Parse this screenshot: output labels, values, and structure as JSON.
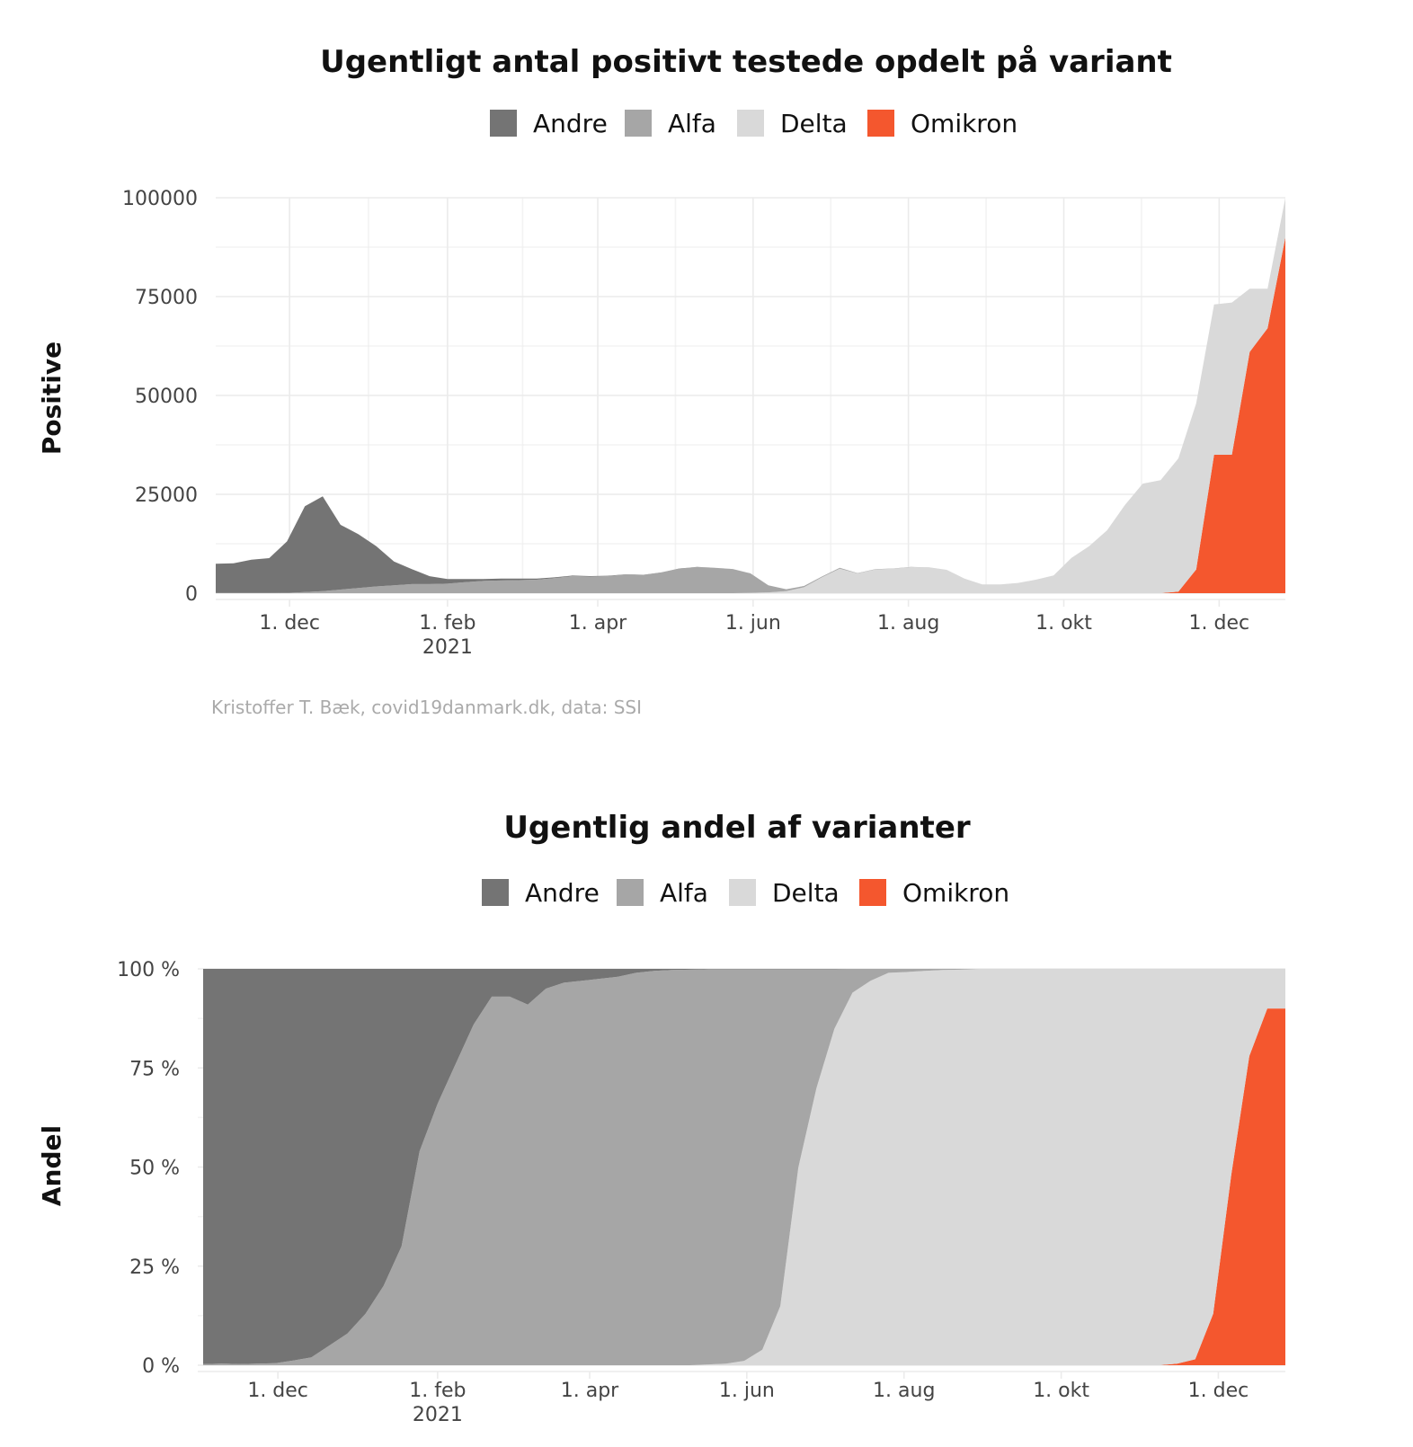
{
  "chart_data": [
    {
      "type": "area",
      "stacked": true,
      "title": "Ugentligt antal positivt testede opdelt på variant",
      "ylabel": "Positive",
      "caption": "Kristoffer T. Bæk, covid19danmark.dk, data: SSI",
      "ylim": [
        0,
        100000
      ],
      "yticks": [
        0,
        25000,
        50000,
        75000,
        100000
      ],
      "ytick_labels": [
        "0",
        "25000",
        "50000",
        "75000",
        "100000"
      ],
      "xticks": [
        {
          "date": "2020-12-01",
          "label": "1. dec",
          "label2": ""
        },
        {
          "date": "2021-02-01",
          "label": "1. feb",
          "label2": "2021"
        },
        {
          "date": "2021-04-01",
          "label": "1. apr",
          "label2": ""
        },
        {
          "date": "2021-06-01",
          "label": "1. jun",
          "label2": ""
        },
        {
          "date": "2021-08-01",
          "label": "1. aug",
          "label2": ""
        },
        {
          "date": "2021-10-01",
          "label": "1. okt",
          "label2": ""
        },
        {
          "date": "2021-12-01",
          "label": "1. dec",
          "label2": ""
        }
      ],
      "x": [
        "2020-11-02",
        "2020-11-09",
        "2020-11-16",
        "2020-11-23",
        "2020-11-30",
        "2020-12-07",
        "2020-12-14",
        "2020-12-21",
        "2020-12-28",
        "2021-01-04",
        "2021-01-11",
        "2021-01-18",
        "2021-01-25",
        "2021-02-01",
        "2021-02-08",
        "2021-02-15",
        "2021-02-22",
        "2021-03-01",
        "2021-03-08",
        "2021-03-15",
        "2021-03-22",
        "2021-03-29",
        "2021-04-05",
        "2021-04-12",
        "2021-04-19",
        "2021-04-26",
        "2021-05-03",
        "2021-05-10",
        "2021-05-17",
        "2021-05-24",
        "2021-05-31",
        "2021-06-07",
        "2021-06-14",
        "2021-06-21",
        "2021-06-28",
        "2021-07-05",
        "2021-07-12",
        "2021-07-19",
        "2021-07-26",
        "2021-08-02",
        "2021-08-09",
        "2021-08-16",
        "2021-08-23",
        "2021-08-30",
        "2021-09-06",
        "2021-09-13",
        "2021-09-20",
        "2021-09-27",
        "2021-10-04",
        "2021-10-11",
        "2021-10-18",
        "2021-10-25",
        "2021-11-01",
        "2021-11-08",
        "2021-11-15",
        "2021-11-22",
        "2021-11-29",
        "2021-12-06",
        "2021-12-13",
        "2021-12-20",
        "2021-12-27"
      ],
      "series": [
        {
          "name": "Andre",
          "color": "#747474",
          "values": [
            7400,
            7500,
            8400,
            8800,
            13000,
            21700,
            24000,
            16400,
            13600,
            10200,
            6000,
            3800,
            2000,
            1200,
            800,
            500,
            500,
            400,
            300,
            200,
            150,
            120,
            100,
            80,
            70,
            60,
            50,
            40,
            30,
            20,
            10,
            10,
            10,
            10,
            10,
            10,
            0,
            0,
            0,
            0,
            0,
            0,
            0,
            0,
            0,
            0,
            0,
            0,
            0,
            0,
            0,
            0,
            0,
            0,
            0,
            0,
            0,
            0,
            0,
            0,
            0
          ]
        },
        {
          "name": "Alfa",
          "color": "#a6a6a6",
          "values": [
            50,
            50,
            60,
            60,
            80,
            300,
            500,
            900,
            1300,
            1700,
            2000,
            2300,
            2300,
            2400,
            2800,
            3100,
            3200,
            3300,
            3400,
            3800,
            4300,
            4200,
            4300,
            4700,
            4600,
            5200,
            6200,
            6600,
            6400,
            6100,
            4900,
            1800,
            500,
            300,
            200,
            200,
            100,
            60,
            40,
            30,
            20,
            10,
            10,
            0,
            0,
            0,
            0,
            0,
            0,
            0,
            0,
            0,
            0,
            0,
            0,
            0,
            0,
            0,
            0,
            0,
            0
          ]
        },
        {
          "name": "Delta",
          "color": "#d9d9d9",
          "values": [
            0,
            0,
            0,
            0,
            0,
            0,
            0,
            0,
            0,
            0,
            0,
            0,
            0,
            0,
            0,
            0,
            0,
            0,
            0,
            0,
            0,
            0,
            0,
            0,
            0,
            0,
            0,
            0,
            0,
            0,
            100,
            200,
            500,
            1500,
            4000,
            6200,
            5000,
            6000,
            6200,
            6600,
            6500,
            5900,
            3700,
            2200,
            2200,
            2600,
            3400,
            4500,
            8900,
            11900,
            15900,
            22300,
            27700,
            28600,
            33700,
            42000,
            38000,
            38500,
            16000,
            10000,
            10000
          ]
        },
        {
          "name": "Omikron",
          "color": "#f4572e",
          "values": [
            0,
            0,
            0,
            0,
            0,
            0,
            0,
            0,
            0,
            0,
            0,
            0,
            0,
            0,
            0,
            0,
            0,
            0,
            0,
            0,
            0,
            0,
            0,
            0,
            0,
            0,
            0,
            0,
            0,
            0,
            0,
            0,
            0,
            0,
            0,
            0,
            0,
            0,
            0,
            0,
            0,
            0,
            0,
            0,
            0,
            0,
            0,
            0,
            0,
            0,
            0,
            0,
            0,
            0,
            400,
            6000,
            35000,
            35000,
            61000,
            67000,
            90000
          ]
        }
      ]
    },
    {
      "type": "area",
      "stacked": true,
      "percent": true,
      "title": "Ugentlig andel af varianter",
      "ylabel": "Andel",
      "ylim": [
        0,
        100
      ],
      "yticks": [
        0,
        25,
        50,
        75,
        100
      ],
      "ytick_labels": [
        "0 %",
        "25 %",
        "50 %",
        "75 %",
        "100 %"
      ],
      "xticks": [
        {
          "date": "2020-12-01",
          "label": "1. dec",
          "label2": ""
        },
        {
          "date": "2021-02-01",
          "label": "1. feb",
          "label2": "2021"
        },
        {
          "date": "2021-04-01",
          "label": "1. apr",
          "label2": ""
        },
        {
          "date": "2021-06-01",
          "label": "1. jun",
          "label2": ""
        },
        {
          "date": "2021-08-01",
          "label": "1. aug",
          "label2": ""
        },
        {
          "date": "2021-10-01",
          "label": "1. okt",
          "label2": ""
        },
        {
          "date": "2021-12-01",
          "label": "1. dec",
          "label2": ""
        }
      ],
      "x": [
        "2020-11-02",
        "2020-11-09",
        "2020-11-16",
        "2020-11-23",
        "2020-11-30",
        "2020-12-07",
        "2020-12-14",
        "2020-12-21",
        "2020-12-28",
        "2021-01-04",
        "2021-01-11",
        "2021-01-18",
        "2021-01-25",
        "2021-02-01",
        "2021-02-08",
        "2021-02-15",
        "2021-02-22",
        "2021-03-01",
        "2021-03-08",
        "2021-03-15",
        "2021-03-22",
        "2021-03-29",
        "2021-04-05",
        "2021-04-12",
        "2021-04-19",
        "2021-04-26",
        "2021-05-03",
        "2021-05-10",
        "2021-05-17",
        "2021-05-24",
        "2021-05-31",
        "2021-06-07",
        "2021-06-14",
        "2021-06-21",
        "2021-06-28",
        "2021-07-05",
        "2021-07-12",
        "2021-07-19",
        "2021-07-26",
        "2021-08-02",
        "2021-08-09",
        "2021-08-16",
        "2021-08-23",
        "2021-08-30",
        "2021-09-06",
        "2021-09-13",
        "2021-09-20",
        "2021-09-27",
        "2021-10-04",
        "2021-10-11",
        "2021-10-18",
        "2021-10-25",
        "2021-11-01",
        "2021-11-08",
        "2021-11-15",
        "2021-11-22",
        "2021-11-29",
        "2021-12-06",
        "2021-12-13",
        "2021-12-20",
        "2021-12-27"
      ],
      "series": [
        {
          "name": "Andre",
          "color": "#747474",
          "values": [
            99.7,
            99.6,
            99.7,
            99.6,
            99.5,
            98.8,
            98.0,
            95.0,
            92.0,
            87.0,
            80.0,
            70.0,
            46.0,
            34.0,
            24.0,
            14.0,
            7.0,
            7.0,
            9.0,
            5.0,
            3.5,
            3.0,
            2.5,
            2.0,
            1.0,
            0.5,
            0.3,
            0.2,
            0.1,
            0.1,
            0.1,
            0.1,
            0.1,
            0.1,
            0.1,
            0.1,
            0,
            0,
            0,
            0,
            0,
            0,
            0,
            0,
            0,
            0,
            0,
            0,
            0,
            0,
            0,
            0,
            0,
            0,
            0,
            0,
            0,
            0,
            0,
            0,
            0
          ]
        },
        {
          "name": "Alfa",
          "color": "#a6a6a6",
          "values": [
            0.3,
            0.4,
            0.3,
            0.4,
            0.5,
            1.2,
            2.0,
            5.0,
            8.0,
            13.0,
            20.0,
            30.0,
            54.0,
            66.0,
            76.0,
            86.0,
            93.0,
            93.0,
            91.0,
            95.0,
            96.5,
            97.0,
            97.5,
            98.0,
            99.0,
            99.5,
            99.7,
            99.8,
            99.7,
            99.5,
            98.8,
            96.0,
            85.0,
            50.0,
            30.0,
            15.0,
            6.0,
            3.0,
            1.0,
            0.8,
            0.5,
            0.3,
            0.2,
            0,
            0,
            0,
            0,
            0,
            0,
            0,
            0,
            0,
            0,
            0,
            0,
            0,
            0,
            0,
            0,
            0,
            0
          ]
        },
        {
          "name": "Delta",
          "color": "#d9d9d9",
          "values": [
            0,
            0,
            0,
            0,
            0,
            0,
            0,
            0,
            0,
            0,
            0,
            0,
            0,
            0,
            0,
            0,
            0,
            0,
            0,
            0,
            0,
            0,
            0,
            0,
            0,
            0,
            0,
            0,
            0.2,
            0.4,
            1.1,
            3.9,
            14.9,
            49.9,
            69.9,
            84.9,
            94.0,
            97.0,
            99.0,
            99.2,
            99.5,
            99.7,
            99.8,
            100,
            100,
            100,
            100,
            100,
            100,
            100,
            100,
            100,
            100,
            100,
            99.6,
            98.5,
            87.0,
            52.0,
            22.0,
            10.0,
            10.0
          ]
        },
        {
          "name": "Omikron",
          "color": "#f4572e",
          "values": [
            0,
            0,
            0,
            0,
            0,
            0,
            0,
            0,
            0,
            0,
            0,
            0,
            0,
            0,
            0,
            0,
            0,
            0,
            0,
            0,
            0,
            0,
            0,
            0,
            0,
            0,
            0,
            0,
            0,
            0,
            0,
            0,
            0,
            0,
            0,
            0,
            0,
            0,
            0,
            0,
            0,
            0,
            0,
            0,
            0,
            0,
            0,
            0,
            0,
            0,
            0,
            0,
            0,
            0,
            0.4,
            1.5,
            13.0,
            48.0,
            78.0,
            90.0,
            90.0
          ]
        }
      ]
    }
  ]
}
